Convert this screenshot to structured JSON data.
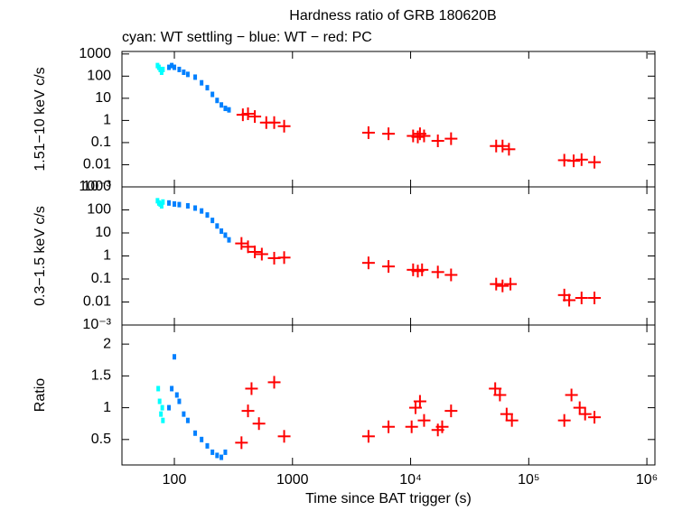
{
  "chart_data": [
    {
      "type": "scatter",
      "title": "Hardness ratio of GRB 180620B",
      "subtitle": "cyan: WT settling − blue: WT − red: PC",
      "ylabel": "1.51−10 keV c/s",
      "xlog": true,
      "ylog": true,
      "xlim": [
        36,
        1170000
      ],
      "ylim": [
        0.001,
        1300
      ],
      "yticks": [
        1000,
        100,
        10,
        1,
        0.1,
        0.01,
        {
          "value": 0.001,
          "label": "10⁻³"
        }
      ],
      "series": [
        {
          "color": "#00ffff",
          "marker": "square",
          "x": [
            72,
            74,
            76,
            78,
            80
          ],
          "values": [
            300,
            250,
            200,
            150,
            200
          ]
        },
        {
          "color": "#0080ff",
          "marker": "square",
          "x": [
            90,
            95,
            100,
            110,
            120,
            130,
            150,
            170,
            190,
            210,
            230,
            250,
            270,
            290
          ],
          "values": [
            250,
            300,
            250,
            200,
            150,
            120,
            90,
            50,
            30,
            15,
            8,
            5,
            3.5,
            3
          ]
        },
        {
          "color": "#ff0000",
          "marker": "cross",
          "x": [
            380,
            420,
            480,
            600,
            700,
            850,
            4400,
            6500,
            10500,
            11500,
            12000,
            13000,
            17000,
            22000,
            53000,
            60000,
            68000,
            200000,
            240000,
            280000,
            360000
          ],
          "values": [
            1.8,
            2,
            1.5,
            0.8,
            0.8,
            0.55,
            0.28,
            0.25,
            0.2,
            0.18,
            0.25,
            0.2,
            0.12,
            0.15,
            0.07,
            0.07,
            0.05,
            0.016,
            0.015,
            0.017,
            0.013
          ]
        }
      ]
    },
    {
      "type": "scatter",
      "ylabel": "0.3−1.5 keV c/s",
      "xlog": true,
      "ylog": true,
      "xlim": [
        36,
        1170000
      ],
      "ylim": [
        0.001,
        1000
      ],
      "yticks": [
        1000,
        100,
        10,
        1,
        0.1,
        0.01,
        {
          "value": 0.001,
          "label": "10⁻³"
        }
      ],
      "series": [
        {
          "color": "#00ffff",
          "marker": "square",
          "x": [
            72,
            74,
            76,
            78,
            80
          ],
          "values": [
            250,
            200,
            180,
            150,
            220
          ]
        },
        {
          "color": "#0080ff",
          "marker": "square",
          "x": [
            90,
            100,
            110,
            130,
            150,
            170,
            190,
            210,
            230,
            250,
            270,
            290
          ],
          "values": [
            200,
            180,
            170,
            150,
            120,
            90,
            60,
            35,
            20,
            12,
            8,
            5
          ]
        },
        {
          "color": "#ff0000",
          "marker": "cross",
          "x": [
            370,
            420,
            480,
            550,
            700,
            850,
            4400,
            6500,
            10500,
            11500,
            12500,
            17000,
            22000,
            53000,
            60000,
            70000,
            200000,
            220000,
            280000,
            360000
          ],
          "values": [
            3.5,
            2.5,
            1.5,
            1.2,
            0.8,
            0.85,
            0.5,
            0.35,
            0.25,
            0.22,
            0.25,
            0.2,
            0.15,
            0.06,
            0.05,
            0.06,
            0.02,
            0.012,
            0.015,
            0.015
          ]
        }
      ]
    },
    {
      "type": "scatter",
      "ylabel": "Ratio",
      "xlabel": "Time since BAT trigger (s)",
      "xlog": true,
      "ylog": false,
      "xlim": [
        36,
        1170000
      ],
      "ylim": [
        0.1,
        2.3
      ],
      "yticks": [
        2,
        1.5,
        1,
        0.5
      ],
      "xticks": [
        100,
        1000,
        {
          "value": 10000,
          "label": "10⁴"
        },
        {
          "value": 100000,
          "label": "10⁵"
        },
        {
          "value": 1000000,
          "label": "10⁶"
        }
      ],
      "series": [
        {
          "color": "#00ffff",
          "marker": "square",
          "x": [
            73,
            75,
            77,
            79,
            80
          ],
          "values": [
            1.3,
            1.1,
            0.9,
            1.0,
            0.8
          ]
        },
        {
          "color": "#0080ff",
          "marker": "square",
          "x": [
            90,
            95,
            100,
            105,
            110,
            120,
            130,
            150,
            170,
            190,
            210,
            230,
            250,
            270
          ],
          "values": [
            1.0,
            1.3,
            1.8,
            1.2,
            1.1,
            0.9,
            0.8,
            0.6,
            0.5,
            0.4,
            0.3,
            0.25,
            0.22,
            0.3
          ]
        },
        {
          "color": "#ff0000",
          "marker": "cross",
          "x": [
            370,
            420,
            450,
            520,
            700,
            850,
            4400,
            6500,
            10200,
            11000,
            12000,
            13000,
            17000,
            18500,
            22000,
            52000,
            57000,
            65000,
            72000,
            200000,
            230000,
            270000,
            300000,
            360000
          ],
          "values": [
            0.45,
            0.95,
            1.3,
            0.75,
            1.4,
            0.55,
            0.55,
            0.7,
            0.7,
            1.0,
            1.1,
            0.8,
            0.65,
            0.7,
            0.95,
            1.3,
            1.2,
            0.9,
            0.8,
            0.8,
            1.2,
            1.0,
            0.9,
            0.85
          ]
        }
      ]
    }
  ]
}
